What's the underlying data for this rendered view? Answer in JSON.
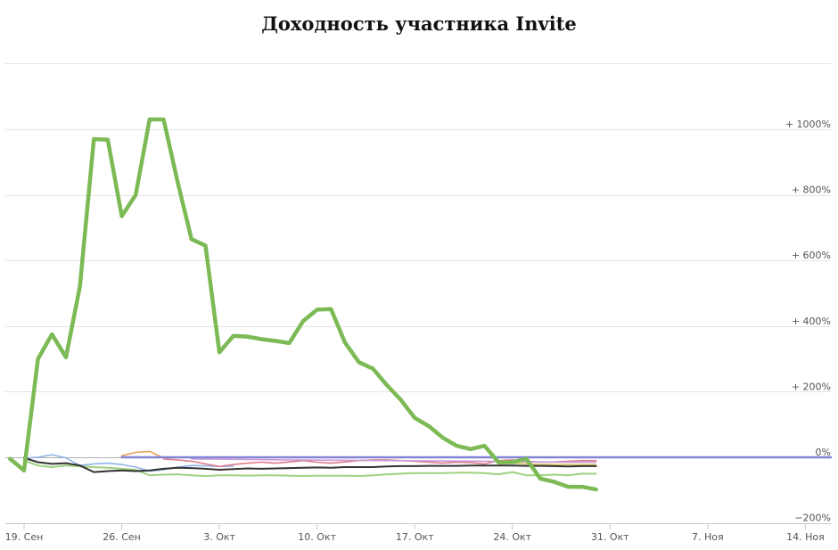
{
  "chart_data": {
    "type": "line",
    "title": "Доходность участника Invite",
    "xlabel": "",
    "ylabel": "",
    "x_ticks": [
      "19. Сен",
      "26. Сен",
      "3. Окт",
      "10. Окт",
      "17. Окт",
      "24. Окт",
      "31. Окт",
      "7. Ноя",
      "14. Ноя"
    ],
    "y_ticks": [
      "+ 1000%",
      "+ 800%",
      "+ 600%",
      "+ 400%",
      "+ 200%",
      "0%",
      "−200%"
    ],
    "ylim": [
      -200,
      1200
    ],
    "grid": true,
    "legend": "none",
    "x_range": [
      "2016-09-18",
      "2016-11-17"
    ],
    "series": [
      {
        "color": "#7cba55",
        "width": 4.5,
        "points": [
          [
            "2016-09-18",
            -5
          ],
          [
            "2016-09-19",
            -40
          ],
          [
            "2016-09-20",
            300
          ],
          [
            "2016-09-21",
            375
          ],
          [
            "2016-09-22",
            305
          ],
          [
            "2016-09-23",
            520
          ],
          [
            "2016-09-24",
            970
          ],
          [
            "2016-09-25",
            968
          ],
          [
            "2016-09-26",
            735
          ],
          [
            "2016-09-27",
            800
          ],
          [
            "2016-09-28",
            1030
          ],
          [
            "2016-09-29",
            1030
          ],
          [
            "2016-09-30",
            840
          ],
          [
            "2016-10-01",
            665
          ],
          [
            "2016-10-02",
            645
          ],
          [
            "2016-10-03",
            320
          ],
          [
            "2016-10-04",
            370
          ],
          [
            "2016-10-05",
            368
          ],
          [
            "2016-10-06",
            360
          ],
          [
            "2016-10-07",
            355
          ],
          [
            "2016-10-08",
            348
          ],
          [
            "2016-10-09",
            415
          ],
          [
            "2016-10-10",
            450
          ],
          [
            "2016-10-11",
            452
          ],
          [
            "2016-10-12",
            350
          ],
          [
            "2016-10-13",
            290
          ],
          [
            "2016-10-14",
            270
          ],
          [
            "2016-10-15",
            220
          ],
          [
            "2016-10-16",
            175
          ],
          [
            "2016-10-17",
            120
          ],
          [
            "2016-10-18",
            95
          ],
          [
            "2016-10-19",
            60
          ],
          [
            "2016-10-20",
            35
          ],
          [
            "2016-10-21",
            25
          ],
          [
            "2016-10-22",
            35
          ],
          [
            "2016-10-23",
            -15
          ],
          [
            "2016-10-24",
            -15
          ],
          [
            "2016-10-25",
            -5
          ],
          [
            "2016-10-26",
            -65
          ],
          [
            "2016-10-27",
            -75
          ],
          [
            "2016-10-28",
            -90
          ],
          [
            "2016-10-29",
            -90
          ],
          [
            "2016-10-30",
            -98
          ]
        ]
      },
      {
        "color": "#9fd17e",
        "width": 2,
        "points": [
          [
            "2016-09-19",
            -10
          ],
          [
            "2016-09-20",
            -25
          ],
          [
            "2016-09-21",
            -30
          ],
          [
            "2016-09-22",
            -25
          ],
          [
            "2016-09-23",
            -28
          ],
          [
            "2016-09-24",
            -30
          ],
          [
            "2016-09-25",
            -32
          ],
          [
            "2016-09-26",
            -35
          ],
          [
            "2016-09-27",
            -38
          ],
          [
            "2016-09-28",
            -55
          ],
          [
            "2016-09-29",
            -53
          ],
          [
            "2016-09-30",
            -52
          ],
          [
            "2016-10-01",
            -55
          ],
          [
            "2016-10-02",
            -57
          ],
          [
            "2016-10-03",
            -55
          ],
          [
            "2016-10-04",
            -55
          ],
          [
            "2016-10-05",
            -56
          ],
          [
            "2016-10-06",
            -55
          ],
          [
            "2016-10-07",
            -55
          ],
          [
            "2016-10-08",
            -56
          ],
          [
            "2016-10-09",
            -57
          ],
          [
            "2016-10-10",
            -56
          ],
          [
            "2016-10-11",
            -56
          ],
          [
            "2016-10-12",
            -56
          ],
          [
            "2016-10-13",
            -57
          ],
          [
            "2016-10-14",
            -55
          ],
          [
            "2016-10-15",
            -52
          ],
          [
            "2016-10-16",
            -50
          ],
          [
            "2016-10-17",
            -48
          ],
          [
            "2016-10-18",
            -48
          ],
          [
            "2016-10-19",
            -48
          ],
          [
            "2016-10-20",
            -47
          ],
          [
            "2016-10-21",
            -47
          ],
          [
            "2016-10-22",
            -48
          ],
          [
            "2016-10-23",
            -52
          ],
          [
            "2016-10-24",
            -45
          ],
          [
            "2016-10-25",
            -55
          ],
          [
            "2016-10-26",
            -55
          ],
          [
            "2016-10-27",
            -53
          ],
          [
            "2016-10-28",
            -55
          ],
          [
            "2016-10-29",
            -50
          ],
          [
            "2016-10-30",
            -50
          ]
        ]
      },
      {
        "color": "#333333",
        "width": 2,
        "points": [
          [
            "2016-09-19",
            -2
          ],
          [
            "2016-09-20",
            -15
          ],
          [
            "2016-09-21",
            -20
          ],
          [
            "2016-09-22",
            -18
          ],
          [
            "2016-09-23",
            -25
          ],
          [
            "2016-09-24",
            -45
          ],
          [
            "2016-09-25",
            -42
          ],
          [
            "2016-09-26",
            -40
          ],
          [
            "2016-09-27",
            -42
          ],
          [
            "2016-09-28",
            -40
          ],
          [
            "2016-09-29",
            -35
          ],
          [
            "2016-09-30",
            -32
          ],
          [
            "2016-10-01",
            -33
          ],
          [
            "2016-10-02",
            -35
          ],
          [
            "2016-10-03",
            -38
          ],
          [
            "2016-10-04",
            -36
          ],
          [
            "2016-10-05",
            -34
          ],
          [
            "2016-10-06",
            -35
          ],
          [
            "2016-10-07",
            -34
          ],
          [
            "2016-10-08",
            -33
          ],
          [
            "2016-10-09",
            -32
          ],
          [
            "2016-10-10",
            -31
          ],
          [
            "2016-10-11",
            -32
          ],
          [
            "2016-10-12",
            -30
          ],
          [
            "2016-10-13",
            -30
          ],
          [
            "2016-10-14",
            -30
          ],
          [
            "2016-10-15",
            -28
          ],
          [
            "2016-10-16",
            -27
          ],
          [
            "2016-10-17",
            -27
          ],
          [
            "2016-10-18",
            -26
          ],
          [
            "2016-10-19",
            -26
          ],
          [
            "2016-10-20",
            -26
          ],
          [
            "2016-10-21",
            -25
          ],
          [
            "2016-10-22",
            -25
          ],
          [
            "2016-10-23",
            -25
          ],
          [
            "2016-10-24",
            -25
          ],
          [
            "2016-10-25",
            -26
          ],
          [
            "2016-10-26",
            -26
          ],
          [
            "2016-10-27",
            -27
          ],
          [
            "2016-10-28",
            -28
          ],
          [
            "2016-10-29",
            -27
          ],
          [
            "2016-10-30",
            -27
          ]
        ]
      },
      {
        "color": "#8cb4e8",
        "width": 1.6,
        "points": [
          [
            "2016-09-19",
            -3
          ],
          [
            "2016-09-20",
            0
          ],
          [
            "2016-09-21",
            8
          ],
          [
            "2016-09-22",
            -2
          ],
          [
            "2016-09-23",
            -25
          ],
          [
            "2016-09-24",
            -20
          ],
          [
            "2016-09-25",
            -18
          ],
          [
            "2016-09-26",
            -22
          ],
          [
            "2016-09-27",
            -30
          ],
          [
            "2016-09-28",
            -42
          ],
          [
            "2016-09-29",
            -38
          ],
          [
            "2016-09-30",
            -30
          ],
          [
            "2016-10-01",
            -25
          ],
          [
            "2016-10-02",
            -26
          ],
          [
            "2016-10-03",
            -28
          ],
          [
            "2016-10-04",
            -27
          ]
        ]
      },
      {
        "color": "#e3a25a",
        "width": 1.6,
        "points": [
          [
            "2016-09-26",
            5
          ],
          [
            "2016-09-27",
            15
          ],
          [
            "2016-09-28",
            18
          ],
          [
            "2016-09-29",
            -2
          ]
        ]
      },
      {
        "color": "#e07a8a",
        "width": 1.6,
        "points": [
          [
            "2016-09-29",
            -5
          ],
          [
            "2016-09-30",
            -8
          ],
          [
            "2016-10-01",
            -12
          ],
          [
            "2016-10-02",
            -20
          ],
          [
            "2016-10-03",
            -28
          ],
          [
            "2016-10-04",
            -22
          ],
          [
            "2016-10-05",
            -18
          ],
          [
            "2016-10-06",
            -15
          ],
          [
            "2016-10-07",
            -18
          ],
          [
            "2016-10-08",
            -14
          ],
          [
            "2016-10-09",
            -10
          ],
          [
            "2016-10-10",
            -15
          ],
          [
            "2016-10-11",
            -18
          ],
          [
            "2016-10-12",
            -14
          ],
          [
            "2016-10-13",
            -10
          ],
          [
            "2016-10-14",
            -8
          ],
          [
            "2016-10-15",
            -8
          ],
          [
            "2016-10-16",
            -10
          ],
          [
            "2016-10-17",
            -12
          ],
          [
            "2016-10-18",
            -15
          ],
          [
            "2016-10-19",
            -18
          ],
          [
            "2016-10-20",
            -15
          ],
          [
            "2016-10-21",
            -16
          ],
          [
            "2016-10-22",
            -20
          ],
          [
            "2016-10-23",
            -10
          ],
          [
            "2016-10-24",
            -8
          ],
          [
            "2016-10-25",
            -12
          ],
          [
            "2016-10-26",
            -15
          ],
          [
            "2016-10-27",
            -14
          ],
          [
            "2016-10-28",
            -12
          ],
          [
            "2016-10-29",
            -10
          ],
          [
            "2016-10-30",
            -10
          ]
        ]
      },
      {
        "color": "#c89ad6",
        "width": 1.6,
        "points": [
          [
            "2016-10-01",
            -5
          ],
          [
            "2016-10-08",
            -8
          ],
          [
            "2016-10-15",
            -10
          ],
          [
            "2016-10-22",
            -12
          ],
          [
            "2016-10-26",
            -14
          ],
          [
            "2016-10-30",
            -15
          ]
        ]
      },
      {
        "color": "#d9c26a",
        "width": 1.6,
        "points": [
          [
            "2016-10-23",
            -20
          ],
          [
            "2016-10-24",
            -18
          ],
          [
            "2016-10-25",
            -20
          ],
          [
            "2016-10-26",
            -22
          ],
          [
            "2016-10-30",
            -22
          ]
        ]
      },
      {
        "color": "#8484d6",
        "width": 2.5,
        "points": [
          [
            "2016-09-26",
            0
          ],
          [
            "2016-10-30",
            0
          ]
        ]
      }
    ]
  }
}
